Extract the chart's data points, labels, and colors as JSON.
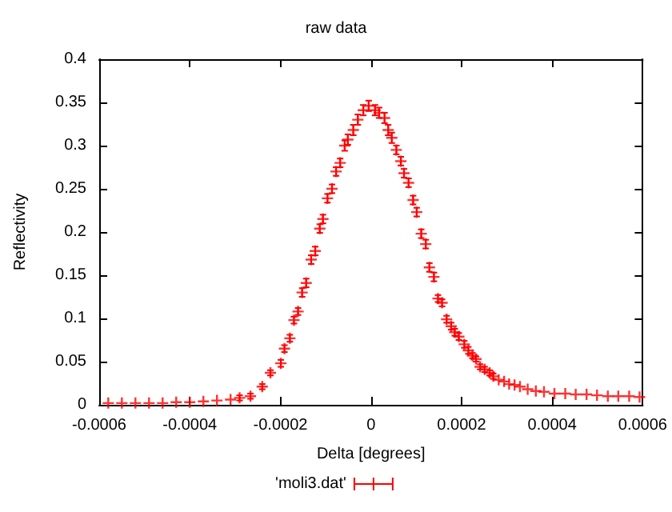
{
  "chart_data": {
    "type": "scatter",
    "title": "raw data",
    "xlabel": "Delta [degrees]",
    "ylabel": "Reflectivity",
    "xlim": [
      -0.0006,
      0.0006
    ],
    "xticks": [
      -0.0006,
      -0.0004,
      -0.0002,
      0,
      0.0002,
      0.0004,
      0.0006
    ],
    "ylim": [
      0,
      0.4
    ],
    "yticks": [
      0,
      0.05,
      0.1,
      0.15,
      0.2,
      0.25,
      0.3,
      0.35,
      0.4
    ],
    "grid": false,
    "legend": "bottom",
    "marker": "cross",
    "series": [
      {
        "name": "'moli3.dat'",
        "color": "#ff0000",
        "x": [
          -0.00058,
          -0.00055,
          -0.00052,
          -0.00049,
          -0.00046,
          -0.00043,
          -0.0004,
          -0.00037,
          -0.00034,
          -0.00031,
          -0.00029,
          -0.000266,
          -0.00024,
          -0.000222,
          -0.000199,
          -0.000191,
          -0.000179,
          -0.00017,
          -0.000161,
          -0.000152,
          -0.000143,
          -0.000132,
          -0.000123,
          -0.000113,
          -0.000106,
          -9.6e-05,
          -8.6e-05,
          -7.7e-05,
          -6.8e-05,
          -5.8e-05,
          -5.1e-05,
          -3.9e-05,
          -2.9e-05,
          -1.7e-05,
          -5e-06,
          9e-06,
          1.8e-05,
          3e-05,
          3.8e-05,
          4.6e-05,
          5.6e-05,
          6.6e-05,
          7.3e-05,
          8.3e-05,
          9.3e-05,
          0.000101,
          0.000111,
          0.000121,
          0.000129,
          0.000139,
          0.000148,
          0.000157,
          0.000167,
          0.000177,
          0.000185,
          0.000194,
          0.000206,
          0.000215,
          0.000224,
          0.000232,
          0.000241,
          0.000251,
          0.000262,
          0.00027,
          0.000282,
          0.000294,
          0.000305,
          0.000317,
          0.000329,
          0.000346,
          0.000364,
          0.000382,
          0.000405,
          0.000429,
          0.000452,
          0.000476,
          0.000499,
          0.000523,
          0.000546,
          0.00057,
          0.000593
        ],
        "values": [
          0.002,
          0.002,
          0.002,
          0.002,
          0.002,
          0.003,
          0.003,
          0.004,
          0.005,
          0.006,
          0.008,
          0.01,
          0.021,
          0.037,
          0.048,
          0.065,
          0.077,
          0.098,
          0.108,
          0.13,
          0.141,
          0.168,
          0.178,
          0.204,
          0.215,
          0.239,
          0.25,
          0.27,
          0.28,
          0.3,
          0.307,
          0.318,
          0.33,
          0.341,
          0.346,
          0.341,
          0.338,
          0.332,
          0.318,
          0.309,
          0.295,
          0.282,
          0.268,
          0.257,
          0.237,
          0.223,
          0.198,
          0.186,
          0.159,
          0.148,
          0.123,
          0.118,
          0.099,
          0.091,
          0.084,
          0.079,
          0.07,
          0.063,
          0.057,
          0.053,
          0.044,
          0.041,
          0.037,
          0.033,
          0.029,
          0.027,
          0.024,
          0.023,
          0.021,
          0.018,
          0.016,
          0.015,
          0.013,
          0.013,
          0.012,
          0.012,
          0.011,
          0.01,
          0.01,
          0.01,
          0.009
        ],
        "errors": [
          null,
          null,
          null,
          null,
          null,
          null,
          null,
          null,
          null,
          null,
          0.003,
          0.003,
          0.003,
          0.003,
          0.004,
          0.004,
          0.004,
          0.004,
          0.004,
          0.005,
          0.005,
          0.005,
          0.005,
          0.005,
          0.005,
          0.005,
          0.005,
          0.005,
          0.005,
          0.006,
          0.006,
          0.006,
          0.006,
          0.006,
          0.006,
          0.006,
          0.006,
          0.006,
          0.006,
          0.006,
          0.005,
          0.005,
          0.005,
          0.005,
          0.005,
          0.005,
          0.005,
          0.005,
          0.005,
          0.005,
          0.004,
          0.004,
          0.004,
          0.004,
          0.004,
          0.004,
          0.004,
          0.004,
          0.003,
          0.003,
          0.003,
          0.003,
          0.003,
          0.003,
          null,
          null,
          null,
          null,
          null,
          null,
          null,
          null,
          null,
          null,
          null,
          null,
          null,
          null,
          null,
          null,
          null
        ]
      }
    ]
  }
}
